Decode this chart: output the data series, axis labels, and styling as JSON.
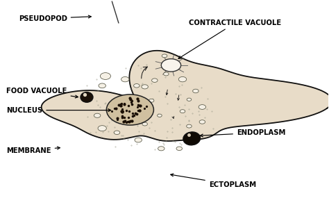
{
  "background_color": "#ffffff",
  "amoeba_fill": "#e8dcc8",
  "amoeba_edge": "#111111",
  "labels": [
    {
      "text": "PSEUDOPOD",
      "xt": 0.055,
      "yt": 0.915,
      "xa": 0.285,
      "ya": 0.925,
      "ha": "left",
      "va": "center"
    },
    {
      "text": "CONTRACTILE VACUOLE",
      "xt": 0.575,
      "yt": 0.895,
      "xa": 0.535,
      "ya": 0.72,
      "ha": "left",
      "va": "center"
    },
    {
      "text": "FOOD VACUOLE",
      "xt": 0.018,
      "yt": 0.575,
      "xa": 0.245,
      "ya": 0.545,
      "ha": "left",
      "va": "center"
    },
    {
      "text": "NUCLEUS",
      "xt": 0.018,
      "yt": 0.485,
      "xa": 0.345,
      "ya": 0.485,
      "ha": "left",
      "va": "center"
    },
    {
      "text": "MEMBRANE",
      "xt": 0.018,
      "yt": 0.295,
      "xa": 0.19,
      "ya": 0.31,
      "ha": "left",
      "va": "center"
    },
    {
      "text": "ENDOPLASM",
      "xt": 0.72,
      "yt": 0.38,
      "xa": 0.6,
      "ya": 0.365,
      "ha": "left",
      "va": "center"
    },
    {
      "text": "ECTOPLASM",
      "xt": 0.635,
      "yt": 0.135,
      "xa": 0.51,
      "ya": 0.185,
      "ha": "left",
      "va": "center"
    }
  ],
  "font_size": 7.2,
  "font_weight": "bold"
}
